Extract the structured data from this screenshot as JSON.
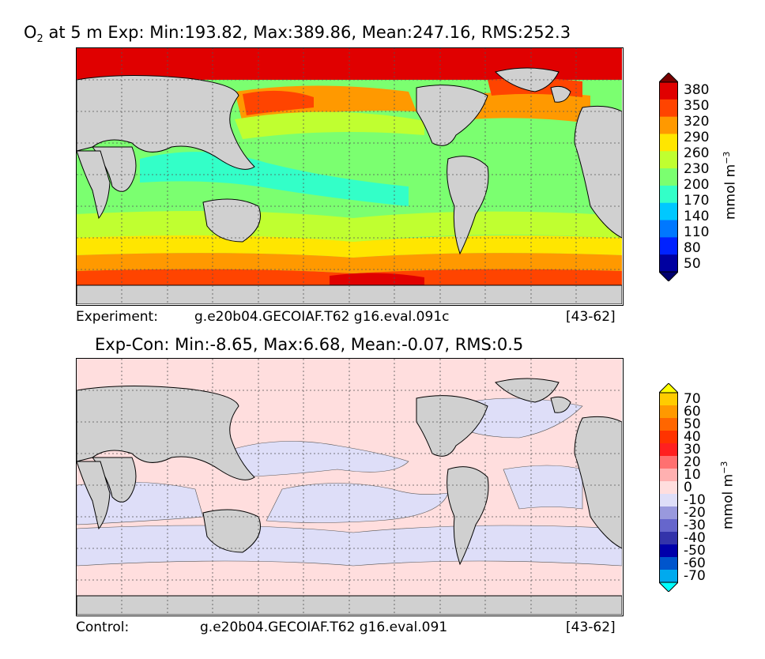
{
  "top_panel": {
    "title_species": "O",
    "title_sub": "2",
    "title_rest": " at 5 m Exp: Min:193.82, Max:389.86, Mean:247.16, RMS:252.3",
    "colorbar": {
      "ticks": [
        "380",
        "350",
        "320",
        "290",
        "260",
        "230",
        "200",
        "170",
        "140",
        "110",
        "80",
        "50"
      ],
      "colors": [
        "#7a0000",
        "#e00000",
        "#ff4400",
        "#ff9900",
        "#ffe600",
        "#c0ff30",
        "#7bff70",
        "#33ffc8",
        "#00c8ff",
        "#0078ff",
        "#0022ff",
        "#0000a0",
        "#000070"
      ],
      "unit_main": "mmol m",
      "unit_sup": "−3"
    },
    "meta_left": "Experiment:",
    "meta_case": "g.e20b04.GECOIAF.T62 g16.eval.091c",
    "meta_years": "[43-62]"
  },
  "bottom_panel": {
    "title": "Exp-Con: Min:-8.65, Max:6.68, Mean:-0.07, RMS:0.5",
    "colorbar": {
      "ticks": [
        "70",
        "60",
        "50",
        "40",
        "30",
        "20",
        "10",
        "0",
        "-10",
        "-20",
        "-30",
        "-40",
        "-50",
        "-60",
        "-70"
      ],
      "colors": [
        "#ffff00",
        "#ffcc00",
        "#ff9900",
        "#ff6600",
        "#ff3300",
        "#ff2020",
        "#ff7070",
        "#ffb0b0",
        "#ffdede",
        "#dedef8",
        "#9999dd",
        "#6666cc",
        "#3333aa",
        "#0000aa",
        "#0055cc",
        "#00aaee",
        "#00ffff"
      ],
      "unit_main": "mmol m",
      "unit_sup": "−3"
    },
    "meta_left": "Control:",
    "meta_case": "g.e20b04.GECOIAF.T62 g16.eval.091",
    "meta_years": "[43-62]"
  },
  "colors": {
    "land": "#d0d0d0",
    "coast": "#000000",
    "grid": "#555555"
  }
}
